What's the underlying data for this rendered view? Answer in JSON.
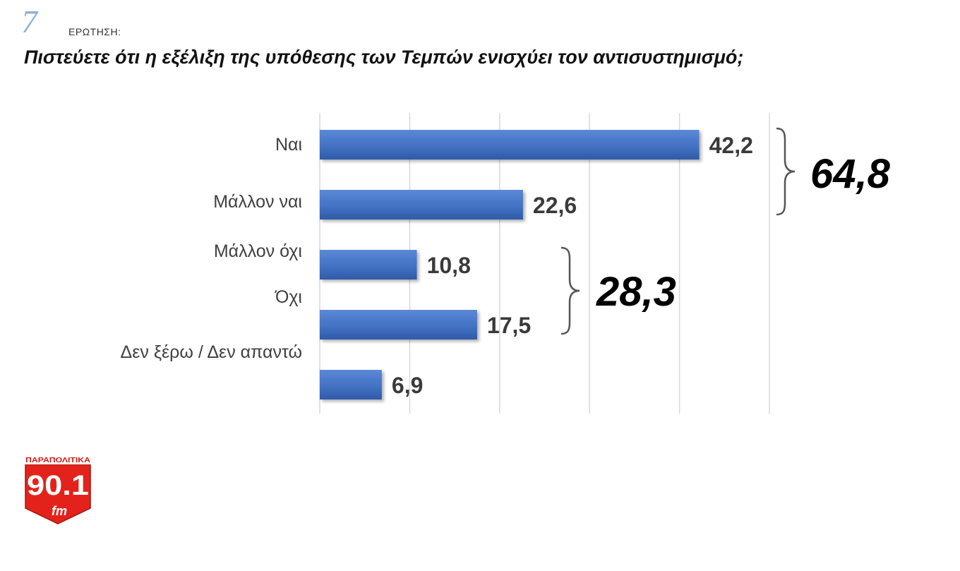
{
  "header": {
    "question_number": "7",
    "question_label": "ΕΡΩΤΗΣΗ:",
    "title": "Πιστεύετε ότι η εξέλιξη της υπόθεσης των Τεμπών ενισχύει τον αντισυστημισμό;"
  },
  "chart_data": {
    "type": "bar",
    "orientation": "horizontal",
    "title": "Πιστεύετε ότι η εξέλιξη της υπόθεσης των Τεμπών ενισχύει τον αντισυστημισμό;",
    "categories": [
      "Ναι",
      "Μάλλον ναι",
      "Μάλλον όχι",
      "Όχι",
      "Δεν ξέρω / Δεν απαντώ"
    ],
    "values": [
      42.2,
      22.6,
      10.8,
      17.5,
      6.9
    ],
    "value_labels": [
      "42,2",
      "22,6",
      "10,8",
      "17,5",
      "6,9"
    ],
    "xlim": [
      0,
      50
    ],
    "grid": true,
    "bar_color": "#4472c4",
    "groups": [
      {
        "label": "64,8",
        "value": 64.8,
        "members": [
          "Ναι",
          "Μάλλον ναι"
        ]
      },
      {
        "label": "28,3",
        "value": 28.3,
        "members": [
          "Μάλλον όχι",
          "Όχι"
        ]
      }
    ]
  },
  "logo": {
    "top_text": "ΠΑΡΑΠΟΛΙΤΙΚΑ",
    "frequency": "90.1",
    "band": "fm",
    "color": "#e3231b"
  }
}
